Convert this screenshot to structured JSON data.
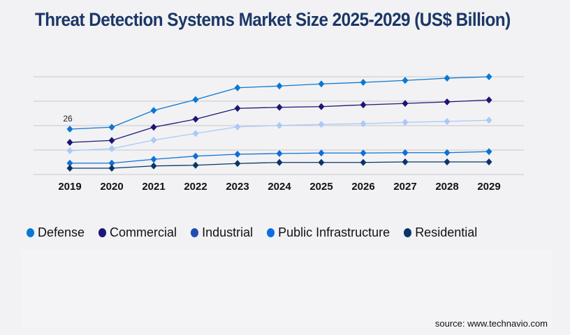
{
  "title": "Threat Detection Systems Market Size 2025-2029 (US$ Billion)",
  "source": "source: www.technavio.com",
  "chart_data": {
    "type": "line",
    "title": "Threat Detection Systems Market Size 2025-2029 (US$ Billion)",
    "xlabel": "",
    "ylabel": "",
    "categories": [
      "2019",
      "2020",
      "2021",
      "2022",
      "2023",
      "2024",
      "2025",
      "2026",
      "2027",
      "2028",
      "2029"
    ],
    "ylim": [
      0,
      56
    ],
    "grid": true,
    "gridlines": [
      0,
      14,
      28,
      42,
      56
    ],
    "legend_position": "bottom",
    "annotations": [
      {
        "series": "Defense",
        "category": "2019",
        "label": "26"
      }
    ],
    "series": [
      {
        "name": "Defense",
        "color": "#0a78d2",
        "legend_color": "#0a78d2",
        "values": [
          26,
          27.1,
          36.7,
          42.9,
          49.7,
          50.7,
          51.9,
          52.8,
          53.9,
          55.2,
          56
        ]
      },
      {
        "name": "Commercial",
        "color": "#1c1676",
        "legend_color": "#1c1676",
        "values": [
          18.4,
          19.5,
          27.1,
          31.7,
          37.9,
          38.5,
          38.9,
          39.9,
          40.7,
          41.6,
          42.7
        ]
      },
      {
        "name": "Industrial",
        "color": "#a9c9f7",
        "legend_color": "#1f4db0",
        "values": [
          13.6,
          14.8,
          19.7,
          23.5,
          27.3,
          28.1,
          28.7,
          29.1,
          29.9,
          30.4,
          31.1
        ]
      },
      {
        "name": "Public Infrastructure",
        "color": "#0f6fd6",
        "legend_color": "#0a6ee0",
        "values": [
          6.5,
          6.5,
          8.7,
          10.5,
          11.6,
          12,
          12.3,
          12.3,
          12.5,
          12.5,
          13.1
        ]
      },
      {
        "name": "Residential",
        "color": "#0b3566",
        "legend_color": "#0b3566",
        "values": [
          3.6,
          3.6,
          4.9,
          5.3,
          6.3,
          6.9,
          6.9,
          6.9,
          7.2,
          7.2,
          7.2
        ]
      }
    ]
  }
}
